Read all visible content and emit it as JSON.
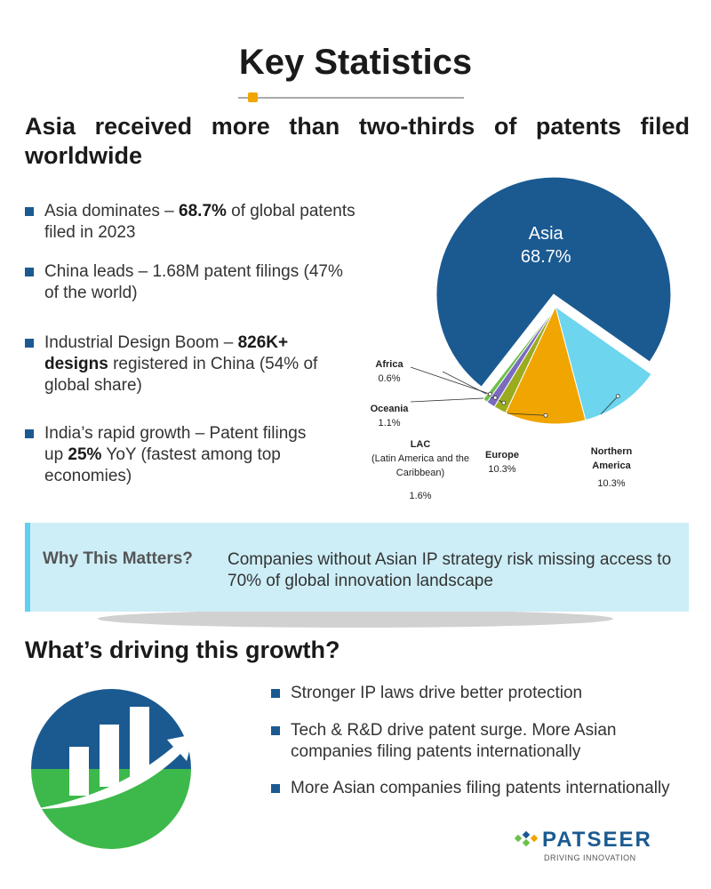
{
  "header": {
    "title": "Key Statistics"
  },
  "headline": "Asia received more than two-thirds of patents filed worldwide",
  "stats": [
    [
      "Asia dominates – ",
      "68.7%",
      " of global patents filed in 2023"
    ],
    [
      "China leads – 1.68M patent filings (47% of the world)"
    ],
    [
      "Industrial Design Boom – ",
      "826K+ designs",
      " registered in China (54% of global share)"
    ],
    [
      "India’s rapid growth – Patent filings up ",
      "25%",
      " YoY (fastest among top economies)"
    ]
  ],
  "chart_data": {
    "type": "pie",
    "categories": [
      "Asia",
      "Northern America",
      "Europe",
      "LAC",
      "Oceania",
      "Africa"
    ],
    "values": [
      68.7,
      10.3,
      10.3,
      1.6,
      1.1,
      0.6
    ],
    "value_labels": [
      "68.7%",
      "10.3%",
      "10.3%",
      "1.6%",
      "1.1%",
      "0.6%"
    ],
    "colors": [
      "#1b5a91",
      "#6dd5ee",
      "#f0a500",
      "#9aab1e",
      "#7b6bbf",
      "#6cc04a"
    ],
    "annotations": [
      "(Latin America and the Caribbean)"
    ]
  },
  "callout": {
    "label": "Why This Matters?",
    "text": "Companies without Asian IP strategy risk missing access to 70% of global innovation landscape"
  },
  "drivers": {
    "title": "What’s driving this growth?",
    "items": [
      "Stronger IP laws drive better protection",
      "Tech & R&D drive patent surge. More Asian companies filing patents internationally",
      "More Asian companies filing patents internationally"
    ]
  },
  "logo": {
    "name": "PATSEER",
    "tagline": "DRIVING INNOVATION"
  }
}
